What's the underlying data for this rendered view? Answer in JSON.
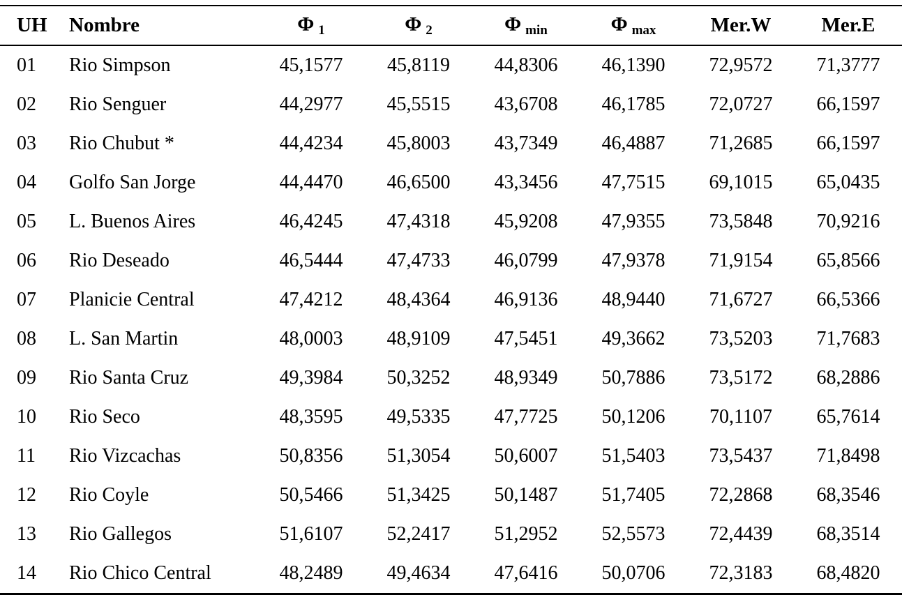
{
  "table": {
    "columns": [
      {
        "key": "uh",
        "label": "UH"
      },
      {
        "key": "nombre",
        "label": "Nombre"
      },
      {
        "key": "phi1",
        "label": "Φ",
        "sub": "1"
      },
      {
        "key": "phi2",
        "label": "Φ",
        "sub": "2"
      },
      {
        "key": "phimin",
        "label": "Φ",
        "sub": "min"
      },
      {
        "key": "phimax",
        "label": "Φ",
        "sub": "max"
      },
      {
        "key": "merw",
        "label": "Mer.W"
      },
      {
        "key": "mere",
        "label": "Mer.E"
      }
    ],
    "rows": [
      [
        "01",
        "Rio Simpson",
        "45,1577",
        "45,8119",
        "44,8306",
        "46,1390",
        "72,9572",
        "71,3777"
      ],
      [
        "02",
        "Rio Senguer",
        "44,2977",
        "45,5515",
        "43,6708",
        "46,1785",
        "72,0727",
        "66,1597"
      ],
      [
        "03",
        "Rio Chubut *",
        "44,4234",
        "45,8003",
        "43,7349",
        "46,4887",
        "71,2685",
        "66,1597"
      ],
      [
        "04",
        "Golfo San Jorge",
        "44,4470",
        "46,6500",
        "43,3456",
        "47,7515",
        "69,1015",
        "65,0435"
      ],
      [
        "05",
        "L. Buenos Aires",
        "46,4245",
        "47,4318",
        "45,9208",
        "47,9355",
        "73,5848",
        "70,9216"
      ],
      [
        "06",
        "Rio Deseado",
        "46,5444",
        "47,4733",
        "46,0799",
        "47,9378",
        "71,9154",
        "65,8566"
      ],
      [
        "07",
        "Planicie Central",
        "47,4212",
        "48,4364",
        "46,9136",
        "48,9440",
        "71,6727",
        "66,5366"
      ],
      [
        "08",
        "L. San Martin",
        "48,0003",
        "48,9109",
        "47,5451",
        "49,3662",
        "73,5203",
        "71,7683"
      ],
      [
        "09",
        "Rio Santa Cruz",
        "49,3984",
        "50,3252",
        "48,9349",
        "50,7886",
        "73,5172",
        "68,2886"
      ],
      [
        "10",
        "Rio Seco",
        "48,3595",
        "49,5335",
        "47,7725",
        "50,1206",
        "70,1107",
        "65,7614"
      ],
      [
        "11",
        "Rio Vizcachas",
        "50,8356",
        "51,3054",
        "50,6007",
        "51,5403",
        "73,5437",
        "71,8498"
      ],
      [
        "12",
        "Rio Coyle",
        "50,5466",
        "51,3425",
        "50,1487",
        "51,7405",
        "72,2868",
        "68,3546"
      ],
      [
        "13",
        "Rio Gallegos",
        "51,6107",
        "52,2417",
        "51,2952",
        "52,5573",
        "72,4439",
        "68,3514"
      ],
      [
        "14",
        "Rio Chico Central",
        "48,2489",
        "49,4634",
        "47,6416",
        "50,0706",
        "72,3183",
        "68,4820"
      ]
    ]
  }
}
